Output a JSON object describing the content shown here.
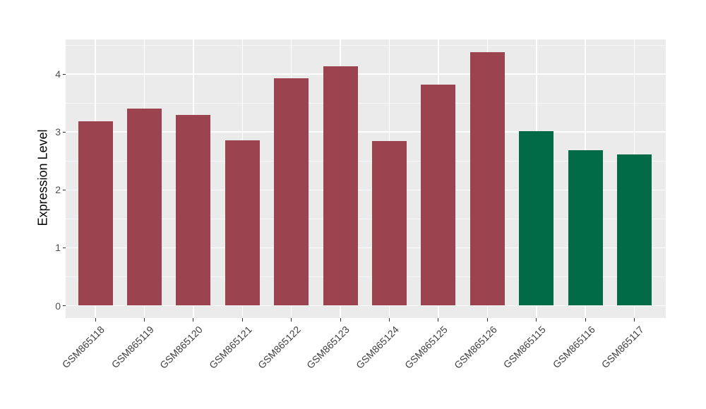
{
  "chart_data": {
    "type": "bar",
    "title": "",
    "xlabel": "",
    "ylabel": "Expression Level",
    "categories": [
      "GSM865118",
      "GSM865119",
      "GSM865120",
      "GSM865121",
      "GSM865122",
      "GSM865123",
      "GSM865124",
      "GSM865125",
      "GSM865126",
      "GSM865115",
      "GSM865116",
      "GSM865117"
    ],
    "values": [
      3.19,
      3.41,
      3.3,
      2.86,
      3.93,
      4.13,
      2.84,
      3.82,
      4.38,
      3.02,
      2.69,
      2.61
    ],
    "bar_colors": [
      "#9B4450",
      "#9B4450",
      "#9B4450",
      "#9B4450",
      "#9B4450",
      "#9B4450",
      "#9B4450",
      "#9B4450",
      "#9B4450",
      "#006B46",
      "#006B46",
      "#006B46"
    ],
    "color_groups": [
      {
        "color": "#9B4450",
        "categories": [
          "GSM865118",
          "GSM865119",
          "GSM865120",
          "GSM865121",
          "GSM865122",
          "GSM865123",
          "GSM865124",
          "GSM865125",
          "GSM865126"
        ]
      },
      {
        "color": "#006B46",
        "categories": [
          "GSM865115",
          "GSM865116",
          "GSM865117"
        ]
      }
    ],
    "yticks": [
      0,
      1,
      2,
      3,
      4
    ],
    "ytick_labels": [
      "0",
      "1",
      "2",
      "3",
      "4"
    ],
    "minor_yticks": [
      0.5,
      1.5,
      2.5,
      3.5,
      4.5
    ],
    "ylim": [
      -0.22,
      4.6
    ],
    "legend": "none",
    "grid": true,
    "panel_background": "#EBEBEB",
    "gridline_color": "#FFFFFF",
    "axis_text_color": "#4D4D4D",
    "x_label_angle_deg": 45
  }
}
